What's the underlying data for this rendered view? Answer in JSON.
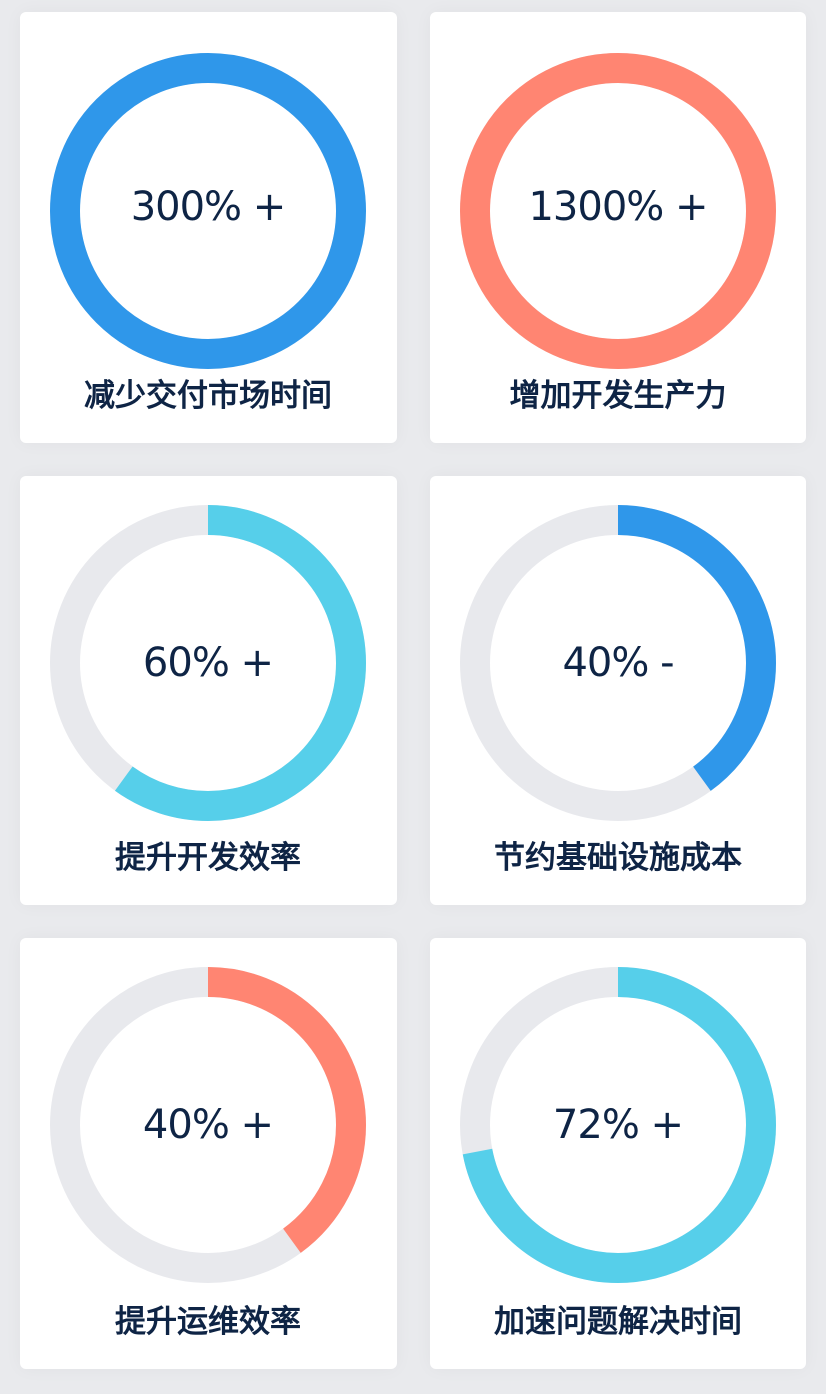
{
  "colors": {
    "track": "#e8e9ed",
    "blue": "#2f97ea",
    "coral": "#ff8572",
    "cyan": "#56cfea"
  },
  "cards": [
    {
      "value": "300% +",
      "label": "减少交付市场时间",
      "progress": 1.0,
      "color": "#2f97ea"
    },
    {
      "value": "1300% +",
      "label": "增加开发生产力",
      "progress": 1.0,
      "color": "#ff8572"
    },
    {
      "value": "60% +",
      "label": "提升开发效率",
      "progress": 0.6,
      "color": "#56cfea"
    },
    {
      "value": "40% -",
      "label": "节约基础设施成本",
      "progress": 0.4,
      "color": "#2f97ea"
    },
    {
      "value": "40% +",
      "label": "提升运维效率",
      "progress": 0.4,
      "color": "#ff8572"
    },
    {
      "value": "72% +",
      "label": "加速问题解决时间",
      "progress": 0.72,
      "color": "#56cfea"
    }
  ]
}
